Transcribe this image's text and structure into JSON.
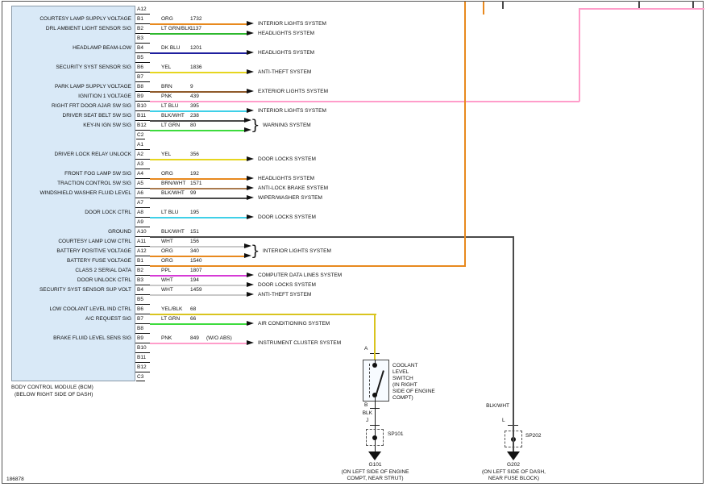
{
  "diagram": {
    "footer_id": "186878",
    "module": {
      "caption": [
        "BODY CONTROL MODULE (BCM)",
        "(BELOW RIGHT SIDE OF DASH)"
      ]
    },
    "ui_colors": {
      "panel_fill": "#d9e9f7"
    },
    "wire_colors": {
      "ORG": "#e8891e",
      "LT GRN/BLK": "#2eb82e",
      "DK BLU": "#1f1f9e",
      "YEL": "#e6d61f",
      "BRN": "#8f5a2a",
      "PNK": "#ff9dca",
      "LT BLU": "#3fd0e8",
      "BLK/WHT": "#4a4a4a",
      "LT GRN": "#3ddb3d",
      "WHT": "#c9c9c9",
      "BRN/WHT": "#a97a4e",
      "PPL": "#d63ad6",
      "YEL/BLK": "#d9c41f",
      "BLK": "#1a1a1a"
    },
    "pins": [
      "A12",
      "B1",
      "B2",
      "B3",
      "B4",
      "B5",
      "B6",
      "B7",
      "B8",
      "B9",
      "B10",
      "B11",
      "B12",
      "C2",
      "A1",
      "A2",
      "A3",
      "A4",
      "A5",
      "A6",
      "A7",
      "A8",
      "A9",
      "A10",
      "A11",
      "A12",
      "B1",
      "B2",
      "B3",
      "B4",
      "B5",
      "B6",
      "B7",
      "B8",
      "B9",
      "B10",
      "B11",
      "B12",
      "C3"
    ],
    "signals": [
      {
        "row": 1,
        "label": "COURTESY LAMP SUPPLY VOLTAGE",
        "color": "ORG",
        "circuit": "1732",
        "target": "INTERIOR LIGHTS SYSTEM"
      },
      {
        "row": 2,
        "label": "DRL AMBIENT LIGHT SENSOR SIG",
        "color": "LT GRN/BLK",
        "circuit": "1137",
        "target": "HEADLIGHTS SYSTEM"
      },
      {
        "row": 4,
        "label": "HEADLAMP BEAM-LOW",
        "color": "DK BLU",
        "circuit": "1201",
        "target": "HEADLIGHTS SYSTEM"
      },
      {
        "row": 6,
        "label": "SECURITY SYST SENSOR SIG",
        "color": "YEL",
        "circuit": "1836",
        "target": "ANTI-THEFT SYSTEM"
      },
      {
        "row": 8,
        "label": "PARK LAMP SUPPLY VOLTAGE",
        "color": "BRN",
        "circuit": "9",
        "target": "EXTERIOR LIGHTS SYSTEM"
      },
      {
        "row": 9,
        "label": "IGNITION 1 VOLTAGE",
        "color": "PNK",
        "circuit": "439",
        "route": "offpage-top-right"
      },
      {
        "row": 10,
        "label": "RIGHT FRT DOOR AJAR SW SIG",
        "color": "LT BLU",
        "circuit": "395",
        "target": "INTERIOR LIGHTS SYSTEM"
      },
      {
        "row": 11,
        "label": "DRIVER SEAT BELT SW SIG",
        "color": "BLK/WHT",
        "circuit": "238",
        "group": "warning"
      },
      {
        "row": 12,
        "label": "KEY-IN IGN SW SIG",
        "color": "LT GRN",
        "circuit": "80",
        "group": "warning"
      },
      {
        "row": 15,
        "label": "DRIVER LOCK RELAY UNLOCK",
        "color": "YEL",
        "circuit": "356",
        "target": "DOOR LOCKS SYSTEM"
      },
      {
        "row": 17,
        "label": "FRONT FOG LAMP SW SIG",
        "color": "ORG",
        "circuit": "192",
        "target": "HEADLIGHTS SYSTEM"
      },
      {
        "row": 18,
        "label": "TRACTION CONTROL SW SIG",
        "color": "BRN/WHT",
        "circuit": "1571",
        "target": "ANTI-LOCK BRAKE SYSTEM"
      },
      {
        "row": 19,
        "label": "WINDSHIELD WASHER FLUID LEVEL",
        "color": "BLK/WHT",
        "circuit": "99",
        "target": "WIPER/WASHER SYSTEM"
      },
      {
        "row": 21,
        "label": "DOOR LOCK CTRL",
        "color": "LT BLU",
        "circuit": "195",
        "target": "DOOR LOCKS SYSTEM"
      },
      {
        "row": 23,
        "label": "GROUND",
        "color": "BLK/WHT",
        "circuit": "151",
        "route": "to-g202"
      },
      {
        "row": 24,
        "label": "COURTESY LAMP LOW CTRL",
        "color": "WHT",
        "circuit": "156",
        "group": "interior2"
      },
      {
        "row": 25,
        "label": "BATTERY POSITIVE VOLTAGE",
        "color": "ORG",
        "circuit": "340",
        "group": "interior2"
      },
      {
        "row": 26,
        "label": "BATTERY FUSE VOLTAGE",
        "color": "ORG",
        "circuit": "1540",
        "route": "offpage-top"
      },
      {
        "row": 27,
        "label": "CLASS 2 SERIAL DATA",
        "color": "PPL",
        "circuit": "1807",
        "target": "COMPUTER DATA LINES SYSTEM"
      },
      {
        "row": 28,
        "label": "DOOR UNLOCK CTRL",
        "color": "WHT",
        "circuit": "194",
        "target": "DOOR LOCKS SYSTEM"
      },
      {
        "row": 29,
        "label": "SECURITY SYST SENSOR SUP VOLT",
        "color": "WHT",
        "circuit": "1459",
        "target": "ANTI-THEFT SYSTEM"
      },
      {
        "row": 31,
        "label": "LOW COOLANT LEVEL IND CTRL",
        "color": "YEL/BLK",
        "circuit": "68",
        "route": "to-coolant-switch"
      },
      {
        "row": 32,
        "label": "A/C REQUEST SIG",
        "color": "LT GRN",
        "circuit": "66",
        "target": "AIR CONDITIONING SYSTEM"
      },
      {
        "row": 34,
        "label": "BRAKE FLUID LEVEL SENS SIG",
        "color": "PNK",
        "circuit": "849",
        "extra": "(W/O ABS)",
        "target": "INSTRUMENT CLUSTER SYSTEM"
      }
    ],
    "groups": {
      "warning": {
        "rows": [
          11,
          12
        ],
        "label": "WARNING SYSTEM"
      },
      "interior2": {
        "rows": [
          24,
          25
        ],
        "label": "INTERIOR LIGHTS SYSTEM"
      }
    },
    "coolant_switch": {
      "label_lines": [
        "COOLANT",
        "LEVEL",
        "SWITCH",
        "(IN RIGHT",
        "SIDE OF ENGINE",
        "COMPT)"
      ],
      "terminal_top": "A",
      "terminal_bottom": "B",
      "wire_below": "BLK",
      "terminal_j": "J",
      "splice": "SP101",
      "ground": "G101",
      "ground_location": [
        "(ON LEFT SIDE OF ENGINE",
        "COMPT, NEAR STRUT)"
      ]
    },
    "ground_branch": {
      "wire_label": "BLK/WHT",
      "terminal": "L",
      "splice": "SP202",
      "ground": "G202",
      "ground_location": [
        "(ON LEFT SIDE OF DASH,",
        "NEAR FUSE BLOCK)"
      ]
    }
  }
}
